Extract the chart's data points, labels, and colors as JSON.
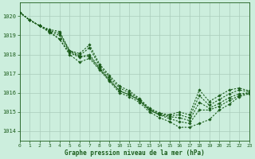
{
  "xlabel": "Graphe pression niveau de la mer (hPa)",
  "ylim": [
    1013.5,
    1020.7
  ],
  "xlim": [
    0,
    23
  ],
  "yticks": [
    1014,
    1015,
    1016,
    1017,
    1018,
    1019,
    1020
  ],
  "xticks": [
    0,
    1,
    2,
    3,
    4,
    5,
    6,
    7,
    8,
    9,
    10,
    11,
    12,
    13,
    14,
    15,
    16,
    17,
    18,
    19,
    20,
    21,
    22,
    23
  ],
  "bg_color": "#cceedd",
  "grid_color": "#aaccbb",
  "line_color": "#1a5c1a",
  "marker": "D",
  "marker_size": 1.8,
  "line_width": 0.8,
  "series": [
    [
      1020.2,
      1019.8,
      1019.5,
      1019.15,
      1018.8,
      1018.0,
      1017.6,
      1017.8,
      1017.2,
      1016.6,
      1016.0,
      1015.8,
      1015.5,
      1015.0,
      1014.7,
      1014.5,
      1014.2,
      1014.2,
      1014.4,
      1014.6,
      1015.1,
      1015.4,
      1015.8,
      1015.95
    ],
    [
      1020.2,
      1019.8,
      1019.5,
      1019.2,
      1018.8,
      1018.1,
      1017.85,
      1018.0,
      1017.3,
      1016.7,
      1016.1,
      1015.9,
      1015.6,
      1015.1,
      1014.85,
      1014.65,
      1014.5,
      1014.4,
      1015.1,
      1015.1,
      1015.3,
      1015.6,
      1015.85,
      1016.0
    ],
    [
      1020.2,
      1019.8,
      1019.5,
      1019.2,
      1019.0,
      1018.15,
      1017.9,
      1017.9,
      1017.25,
      1016.65,
      1016.1,
      1015.9,
      1015.6,
      1015.1,
      1014.85,
      1014.75,
      1014.7,
      1014.55,
      1015.5,
      1015.2,
      1015.45,
      1015.75,
      1015.95,
      1016.0
    ],
    [
      1020.2,
      1019.8,
      1019.5,
      1019.25,
      1019.1,
      1018.2,
      1017.95,
      1018.35,
      1017.4,
      1016.8,
      1016.25,
      1016.0,
      1015.65,
      1015.15,
      1014.9,
      1014.8,
      1014.85,
      1014.7,
      1015.85,
      1015.35,
      1015.65,
      1015.95,
      1016.15,
      1016.05
    ],
    [
      1020.2,
      1019.8,
      1019.5,
      1019.3,
      1019.2,
      1018.2,
      1018.05,
      1018.5,
      1017.5,
      1016.9,
      1016.35,
      1016.1,
      1015.7,
      1015.2,
      1014.95,
      1014.85,
      1015.0,
      1014.85,
      1016.15,
      1015.55,
      1015.85,
      1016.15,
      1016.25,
      1016.1
    ]
  ]
}
